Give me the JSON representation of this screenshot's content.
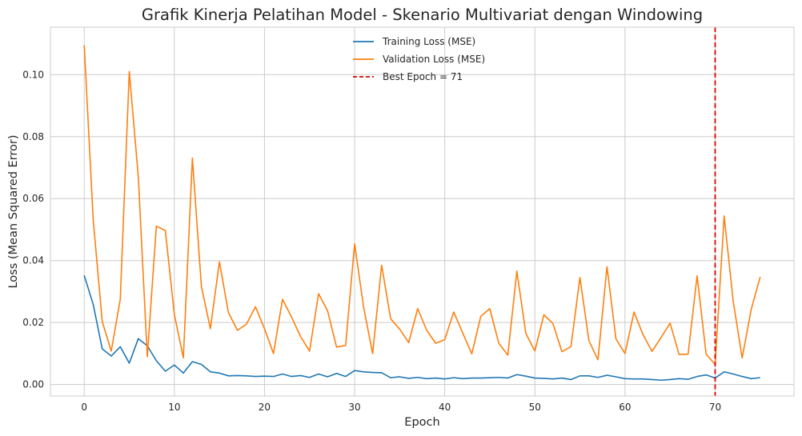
{
  "chart_data": {
    "type": "line",
    "title": "Grafik Kinerja Pelatihan Model - Skenario Multivariat dengan Windowing",
    "xlabel": "Epoch",
    "ylabel": "Loss (Mean Squared Error)",
    "xlim": [
      -3.75,
      78.75
    ],
    "ylim": [
      -0.0037,
      0.1153
    ],
    "xticks": [
      0,
      10,
      20,
      30,
      40,
      50,
      60,
      70
    ],
    "yticks": [
      0.0,
      0.02,
      0.04,
      0.06,
      0.08,
      0.1
    ],
    "ytick_labels": [
      "0.00",
      "0.02",
      "0.04",
      "0.06",
      "0.08",
      "0.10"
    ],
    "grid": true,
    "legend_position": "top-center",
    "series": [
      {
        "name": "Training Loss (MSE)",
        "color": "#1f77b4",
        "values": [
          0.0352,
          0.0258,
          0.0115,
          0.0092,
          0.0122,
          0.0069,
          0.0148,
          0.0125,
          0.0077,
          0.0043,
          0.0063,
          0.0037,
          0.0074,
          0.0065,
          0.0041,
          0.0037,
          0.0028,
          0.0029,
          0.0028,
          0.0026,
          0.0027,
          0.0026,
          0.0034,
          0.0026,
          0.0029,
          0.0023,
          0.0034,
          0.0025,
          0.0036,
          0.0026,
          0.0045,
          0.0041,
          0.0039,
          0.0038,
          0.0022,
          0.0025,
          0.002,
          0.0023,
          0.0019,
          0.0021,
          0.0018,
          0.0022,
          0.0019,
          0.0021,
          0.0021,
          0.0022,
          0.0023,
          0.0021,
          0.0032,
          0.0027,
          0.0021,
          0.002,
          0.0018,
          0.0021,
          0.0016,
          0.0028,
          0.0028,
          0.0023,
          0.003,
          0.0025,
          0.0019,
          0.0018,
          0.0018,
          0.0016,
          0.0014,
          0.0016,
          0.0019,
          0.0017,
          0.0026,
          0.0031,
          0.0021,
          0.0041,
          0.0034,
          0.0026,
          0.0019,
          0.0022
        ]
      },
      {
        "name": "Validation Loss (MSE)",
        "color": "#ff7f0e",
        "values": [
          0.1095,
          0.053,
          0.0203,
          0.0108,
          0.0275,
          0.101,
          0.067,
          0.009,
          0.0511,
          0.0497,
          0.0226,
          0.0086,
          0.0731,
          0.0316,
          0.018,
          0.0396,
          0.0232,
          0.0175,
          0.0195,
          0.0251,
          0.018,
          0.01,
          0.0275,
          0.0218,
          0.0155,
          0.0108,
          0.0293,
          0.0238,
          0.0121,
          0.0126,
          0.0454,
          0.0249,
          0.01,
          0.0385,
          0.0212,
          0.0179,
          0.0135,
          0.0245,
          0.0175,
          0.0133,
          0.0145,
          0.0234,
          0.0166,
          0.0099,
          0.022,
          0.0245,
          0.0133,
          0.0095,
          0.0366,
          0.0165,
          0.0108,
          0.0225,
          0.0197,
          0.0106,
          0.0122,
          0.0345,
          0.0141,
          0.008,
          0.038,
          0.0147,
          0.01,
          0.0234,
          0.0161,
          0.0107,
          0.0152,
          0.0198,
          0.0097,
          0.0098,
          0.0351,
          0.0098,
          0.0065,
          0.0544,
          0.027,
          0.0086,
          0.0242,
          0.0347
        ]
      }
    ],
    "annotations": [
      {
        "type": "vline",
        "x": 70,
        "label": "Best Epoch = 71",
        "color": "#e00000",
        "style": "dashed"
      }
    ]
  }
}
